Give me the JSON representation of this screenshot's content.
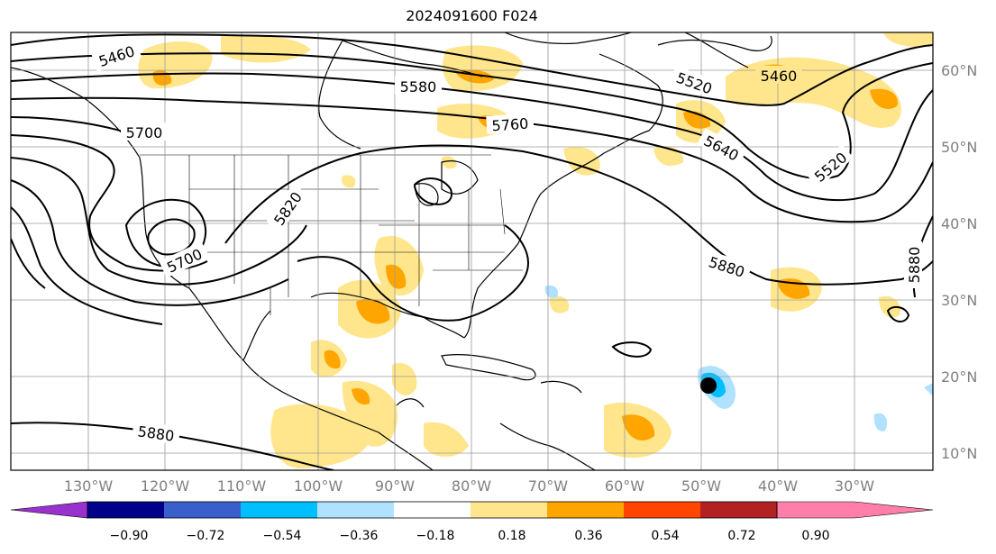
{
  "title": "2024091600 F024",
  "longitude_labels": [
    "130°W",
    "120°W",
    "110°W",
    "100°W",
    "90°W",
    "80°W",
    "70°W",
    "60°W",
    "50°W",
    "40°W",
    "30°W"
  ],
  "latitude_labels": [
    "60°N",
    "50°N",
    "40°N",
    "30°N",
    "20°N",
    "10°N"
  ],
  "contour_labels": [
    "5460",
    "5580",
    "5700",
    "5760",
    "5520",
    "5640",
    "5460",
    "5520",
    "5820",
    "5700",
    "5880",
    "5880",
    "5880"
  ],
  "colorbar": {
    "ticks": [
      "−0.90",
      "−0.72",
      "−0.54",
      "−0.36",
      "−0.18",
      "0.18",
      "0.36",
      "0.54",
      "0.72",
      "0.90"
    ],
    "colors": [
      "#9932CC",
      "#00008B",
      "#3A5FCD",
      "#00BFFF",
      "#B0E2FF",
      "#FFFFFF",
      "#FFE68C",
      "#FFA500",
      "#FF4500",
      "#B22222",
      "#FF7FAA"
    ]
  },
  "marker": "storm-center"
}
